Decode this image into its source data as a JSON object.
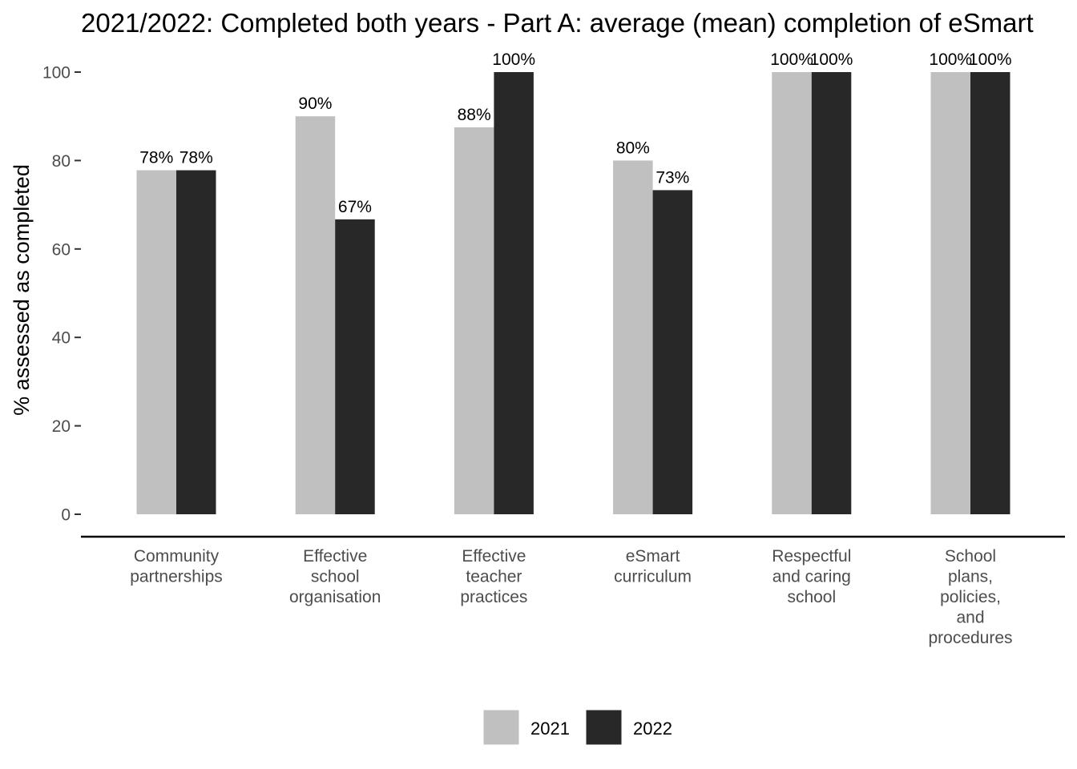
{
  "chart_data": {
    "type": "bar",
    "title": "2021/2022:  Completed both years - Part A: average (mean) completion of eSmart",
    "xlabel": "",
    "ylabel": "% assessed as completed",
    "ylim": [
      0,
      100
    ],
    "yticks": [
      0,
      20,
      40,
      60,
      80,
      100
    ],
    "categories": [
      [
        "Community",
        "partnerships"
      ],
      [
        "Effective",
        "school",
        "organisation"
      ],
      [
        "Effective",
        "teacher",
        "practices"
      ],
      [
        "eSmart",
        "curriculum"
      ],
      [
        "Respectful",
        "and caring",
        "school"
      ],
      [
        "School",
        "plans,",
        "policies,",
        "and",
        "procedures"
      ]
    ],
    "series": [
      {
        "name": "2021",
        "color": "#c0c0c0",
        "values": [
          77.8,
          90,
          87.5,
          80,
          100,
          100
        ],
        "labels": [
          "78%",
          "90%",
          "88%",
          "80%",
          "100%",
          "100%"
        ]
      },
      {
        "name": "2022",
        "color": "#282828",
        "values": [
          77.8,
          66.7,
          100,
          73.3,
          100,
          100
        ],
        "labels": [
          "78%",
          "67%",
          "100%",
          "73%",
          "100%",
          "100%"
        ]
      }
    ],
    "grid": false,
    "legend": "bottom"
  }
}
